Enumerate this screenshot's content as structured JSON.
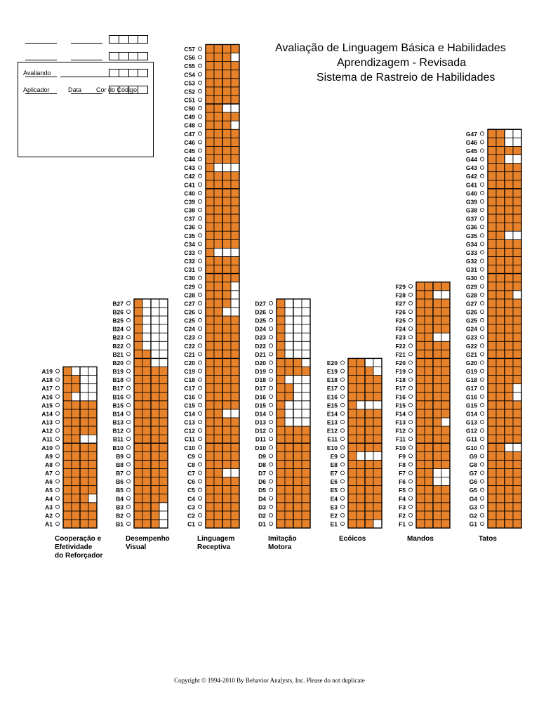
{
  "title": {
    "line1": "Avaliação de Linguagem Básica e Habilidades",
    "line2": "Aprendizagem - Revisada",
    "line3": "Sistema de Rastreio de Habilidades"
  },
  "form": {
    "avaliando_label": "Avaliando",
    "aplicador_label": "Aplicador",
    "data_label": "Data",
    "cor_label": "Cor do Código"
  },
  "chart_data": {
    "type": "bar",
    "fill_color": "#E8822A",
    "columns": [
      {
        "prefix": "A",
        "label": [
          "Cooperação e",
          "Efetividade",
          "do Reforçador"
        ],
        "count": 19,
        "cells": 4,
        "filled": [
          4,
          4,
          4,
          3,
          4,
          4,
          4,
          4,
          4,
          4,
          2,
          4,
          4,
          4,
          4,
          1,
          2,
          2,
          1
        ]
      },
      {
        "prefix": "B",
        "label": [
          "Desempenho",
          "Visual"
        ],
        "count": 27,
        "cells": 4,
        "filled": [
          3,
          3,
          3,
          4,
          4,
          4,
          4,
          4,
          4,
          4,
          4,
          4,
          4,
          4,
          4,
          4,
          4,
          4,
          4,
          2,
          2,
          1,
          1,
          1,
          1,
          1,
          1
        ]
      },
      {
        "prefix": "C",
        "label": [
          "Linguagem",
          "Receptiva"
        ],
        "count": 57,
        "cells": 4,
        "filled": [
          4,
          4,
          4,
          4,
          4,
          4,
          2,
          4,
          4,
          4,
          4,
          4,
          4,
          2,
          4,
          4,
          4,
          4,
          4,
          4,
          4,
          4,
          4,
          4,
          4,
          2,
          3,
          3,
          3,
          4,
          4,
          4,
          1,
          4,
          4,
          4,
          4,
          4,
          4,
          4,
          4,
          4,
          1,
          4,
          4,
          4,
          4,
          3,
          4,
          2,
          4,
          4,
          4,
          4,
          4,
          3,
          4
        ]
      },
      {
        "prefix": "D",
        "label": [
          "Imitação",
          "Motora"
        ],
        "count": 27,
        "cells": 4,
        "filled": [
          4,
          4,
          4,
          4,
          4,
          4,
          4,
          4,
          4,
          4,
          4,
          4,
          1,
          1,
          1,
          2,
          2,
          1,
          4,
          3,
          1,
          1,
          1,
          1,
          1,
          1,
          1
        ]
      },
      {
        "prefix": "E",
        "label": [
          "Ecóicos"
        ],
        "count": 20,
        "cells": 4,
        "filled": [
          3,
          4,
          4,
          4,
          4,
          4,
          4,
          4,
          1,
          4,
          4,
          4,
          4,
          4,
          1,
          4,
          4,
          4,
          3,
          2
        ]
      },
      {
        "prefix": "F",
        "label": [
          "Mandos"
        ],
        "count": 29,
        "cells": 4,
        "filled": [
          4,
          4,
          4,
          4,
          4,
          2,
          2,
          4,
          4,
          4,
          4,
          4,
          3,
          4,
          4,
          4,
          4,
          4,
          4,
          4,
          4,
          4,
          2,
          4,
          4,
          4,
          4,
          2,
          4
        ]
      },
      {
        "prefix": "G",
        "label": [
          "Tatos"
        ],
        "count": 47,
        "cells": 4,
        "filled": [
          4,
          4,
          4,
          4,
          4,
          4,
          4,
          4,
          4,
          2,
          4,
          4,
          4,
          4,
          4,
          3,
          3,
          4,
          4,
          4,
          4,
          4,
          4,
          4,
          4,
          4,
          4,
          3,
          4,
          4,
          4,
          4,
          4,
          4,
          2,
          4,
          4,
          4,
          4,
          4,
          4,
          4,
          4,
          2,
          4,
          2,
          2
        ]
      }
    ]
  },
  "copyright": "Copyright © 1994-2010 By Behavior Analysts, Inc.     Please do not duplicate"
}
